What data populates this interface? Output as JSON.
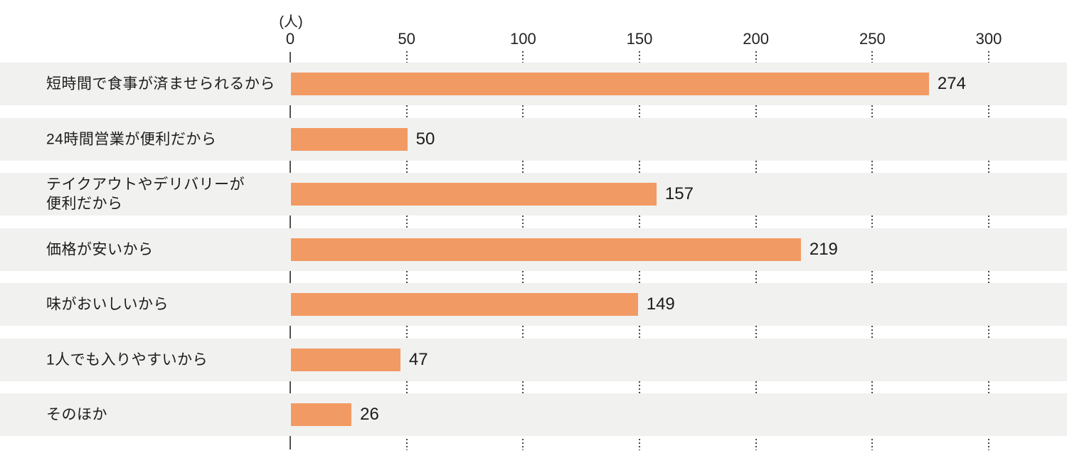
{
  "chart_data": {
    "type": "bar",
    "orientation": "horizontal",
    "unit_label": "(人)",
    "categories": [
      "短時間で食事が済ませられるから",
      "24時間営業が便利だから",
      "テイクアウトやデリバリーが\n便利だから",
      "価格が安いから",
      "味がおいしいから",
      "1人でも入りやすいから",
      "そのほか"
    ],
    "values": [
      274,
      50,
      157,
      219,
      149,
      47,
      26
    ],
    "x_ticks": [
      0,
      50,
      100,
      150,
      200,
      250,
      300
    ],
    "xlim": [
      0,
      300
    ],
    "xlabel": "",
    "ylabel": "",
    "legend": "none",
    "grid": "dotted vertical gridlines at each tick, drawn only in gaps between row stripes",
    "colors": {
      "bar": "#F29A63",
      "row_stripe": "#F1F1F0",
      "background": "#FFFFFF",
      "text": "#1C1C1C",
      "axis_line": "#55524F",
      "grid_dots": "#4A4743"
    }
  }
}
